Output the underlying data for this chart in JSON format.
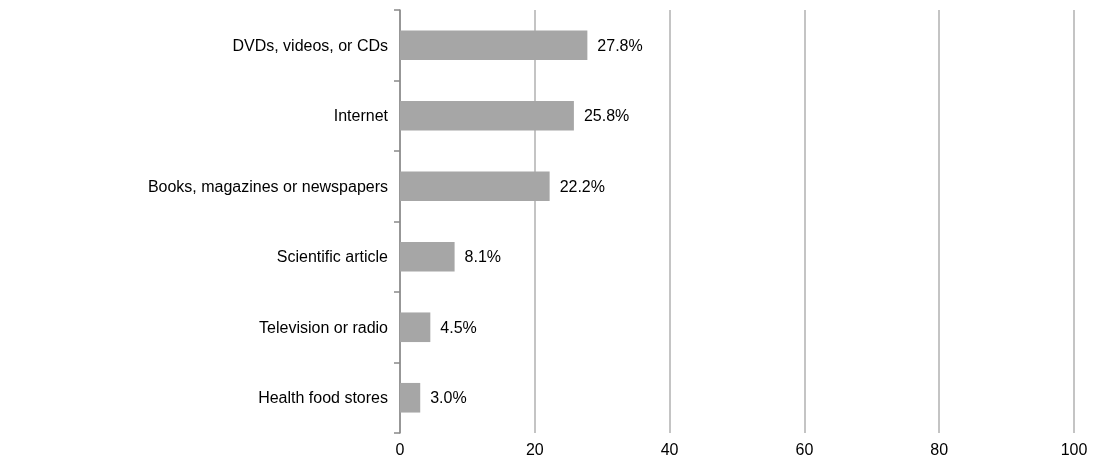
{
  "chart_data": {
    "type": "bar",
    "orientation": "horizontal",
    "categories": [
      "DVDs, videos, or CDs",
      "Internet",
      "Books, magazines or newspapers",
      "Scientific article",
      "Television or radio",
      "Health food stores"
    ],
    "values": [
      27.8,
      25.8,
      22.2,
      8.1,
      4.5,
      3.0
    ],
    "value_labels": [
      "27.8%",
      "25.8%",
      "22.2%",
      "8.1%",
      "4.5%",
      "3.0%"
    ],
    "color": "#a6a6a6",
    "xlim": [
      0,
      100
    ],
    "xticks": [
      0,
      20,
      40,
      60,
      80,
      100
    ],
    "grid": "x"
  }
}
